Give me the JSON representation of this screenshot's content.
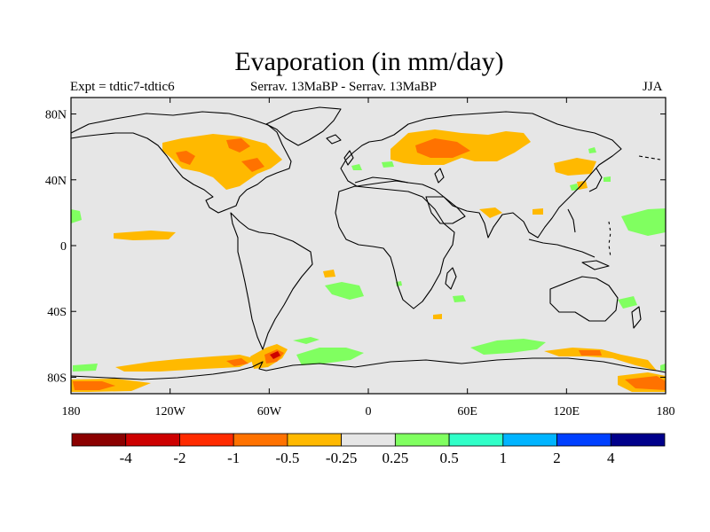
{
  "title": "Evaporation (in mm/day)",
  "subtitle_left": "Expt = tdtic7-tdtic6",
  "subtitle_center": "Serrav.   13MaBP - Serrav.   13MaBP",
  "subtitle_right": "JJA",
  "axes": {
    "lat_ticks": [
      {
        "value": 80,
        "label": "80N"
      },
      {
        "value": 40,
        "label": "40N"
      },
      {
        "value": 0,
        "label": "0"
      },
      {
        "value": -40,
        "label": "40S"
      },
      {
        "value": -80,
        "label": "80S"
      }
    ],
    "lon_ticks": [
      {
        "value": -180,
        "label": "180"
      },
      {
        "value": -120,
        "label": "120W"
      },
      {
        "value": -60,
        "label": "60W"
      },
      {
        "value": 0,
        "label": "0"
      },
      {
        "value": 60,
        "label": "60E"
      },
      {
        "value": 120,
        "label": "120E"
      },
      {
        "value": 180,
        "label": "180"
      }
    ],
    "lon_range": [
      -180,
      180
    ],
    "lat_range": [
      -90,
      90
    ]
  },
  "colorbar": {
    "labels": [
      "-4",
      "-2",
      "-1",
      "-0.5",
      "-0.25",
      "0.25",
      "0.5",
      "1",
      "2",
      "4"
    ],
    "colors": [
      "#8b0000",
      "#cd0000",
      "#ff2b00",
      "#ff7200",
      "#ffb900",
      "#e6e6e6",
      "#80ff60",
      "#30ffc8",
      "#00b4ff",
      "#0040ff",
      "#00008b"
    ]
  },
  "map": {
    "background": "#e6e6e6",
    "coastline": "#000000"
  }
}
